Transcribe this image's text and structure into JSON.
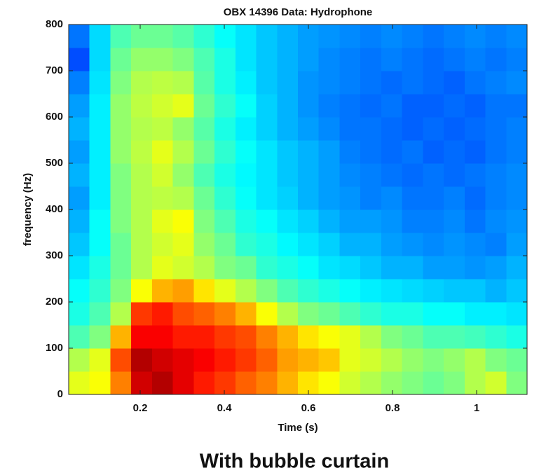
{
  "chart_data": {
    "type": "heatmap",
    "title": "OBX 14396 Data: Hydrophone",
    "x_label": "Time (s)",
    "y_label": "frequency (Hz)",
    "caption": "With bubble curtain",
    "xlim": [
      0.03,
      1.12
    ],
    "ylim": [
      0,
      800
    ],
    "xticks": [
      0.2,
      0.4,
      0.6,
      0.8,
      1
    ],
    "yticks": [
      0,
      100,
      200,
      300,
      400,
      500,
      600,
      700,
      800
    ],
    "colormap": "jet",
    "zlim": [
      0,
      100
    ],
    "z": [
      [
        60,
        62,
        75,
        92,
        95,
        90,
        85,
        82,
        78,
        75,
        70,
        65,
        62,
        58,
        55,
        52,
        50,
        48,
        50,
        55,
        58,
        50
      ],
      [
        55,
        60,
        80,
        95,
        92,
        90,
        88,
        85,
        82,
        78,
        72,
        70,
        68,
        60,
        58,
        55,
        52,
        50,
        52,
        55,
        50,
        48
      ],
      [
        45,
        50,
        70,
        88,
        88,
        85,
        85,
        82,
        80,
        75,
        70,
        65,
        62,
        60,
        55,
        50,
        48,
        45,
        45,
        44,
        42,
        40
      ],
      [
        40,
        45,
        55,
        82,
        85,
        80,
        78,
        75,
        70,
        62,
        55,
        50,
        48,
        45,
        42,
        40,
        40,
        38,
        38,
        36,
        36,
        35
      ],
      [
        38,
        42,
        50,
        62,
        70,
        72,
        65,
        60,
        55,
        50,
        45,
        42,
        40,
        38,
        36,
        35,
        34,
        33,
        32,
        32,
        30,
        32
      ],
      [
        35,
        40,
        48,
        55,
        60,
        58,
        55,
        50,
        48,
        42,
        40,
        38,
        35,
        34,
        32,
        30,
        30,
        28,
        28,
        27,
        28,
        30
      ],
      [
        32,
        38,
        48,
        55,
        58,
        60,
        52,
        48,
        42,
        40,
        37,
        35,
        33,
        30,
        30,
        28,
        27,
        26,
        27,
        26,
        25,
        28
      ],
      [
        30,
        38,
        50,
        55,
        60,
        62,
        50,
        45,
        40,
        38,
        35,
        33,
        30,
        28,
        28,
        27,
        25,
        25,
        26,
        24,
        26,
        27
      ],
      [
        28,
        36,
        50,
        55,
        56,
        55,
        48,
        42,
        38,
        35,
        33,
        30,
        28,
        27,
        25,
        26,
        24,
        24,
        25,
        23,
        25,
        26
      ],
      [
        30,
        36,
        50,
        55,
        58,
        52,
        45,
        40,
        37,
        35,
        32,
        30,
        28,
        26,
        25,
        24,
        23,
        24,
        23,
        24,
        25,
        26
      ],
      [
        28,
        36,
        52,
        56,
        60,
        55,
        48,
        42,
        38,
        35,
        32,
        30,
        28,
        25,
        24,
        23,
        24,
        22,
        23,
        22,
        24,
        25
      ],
      [
        30,
        36,
        52,
        55,
        56,
        52,
        46,
        40,
        36,
        33,
        30,
        28,
        26,
        24,
        24,
        23,
        22,
        23,
        22,
        23,
        24,
        25
      ],
      [
        28,
        36,
        52,
        56,
        58,
        60,
        48,
        42,
        38,
        33,
        30,
        27,
        25,
        24,
        23,
        24,
        22,
        22,
        23,
        22,
        24,
        24
      ],
      [
        25,
        35,
        50,
        55,
        56,
        55,
        46,
        40,
        36,
        32,
        30,
        27,
        26,
        25,
        24,
        23,
        24,
        23,
        22,
        24,
        25,
        26
      ],
      [
        20,
        34,
        48,
        52,
        52,
        50,
        45,
        40,
        35,
        32,
        30,
        28,
        26,
        25,
        24,
        25,
        24,
        23,
        24,
        25,
        24,
        25
      ],
      [
        24,
        34,
        45,
        48,
        48,
        46,
        42,
        38,
        35,
        32,
        30,
        28,
        27,
        26,
        25,
        26,
        25,
        24,
        25,
        26,
        25,
        26
      ]
    ]
  }
}
